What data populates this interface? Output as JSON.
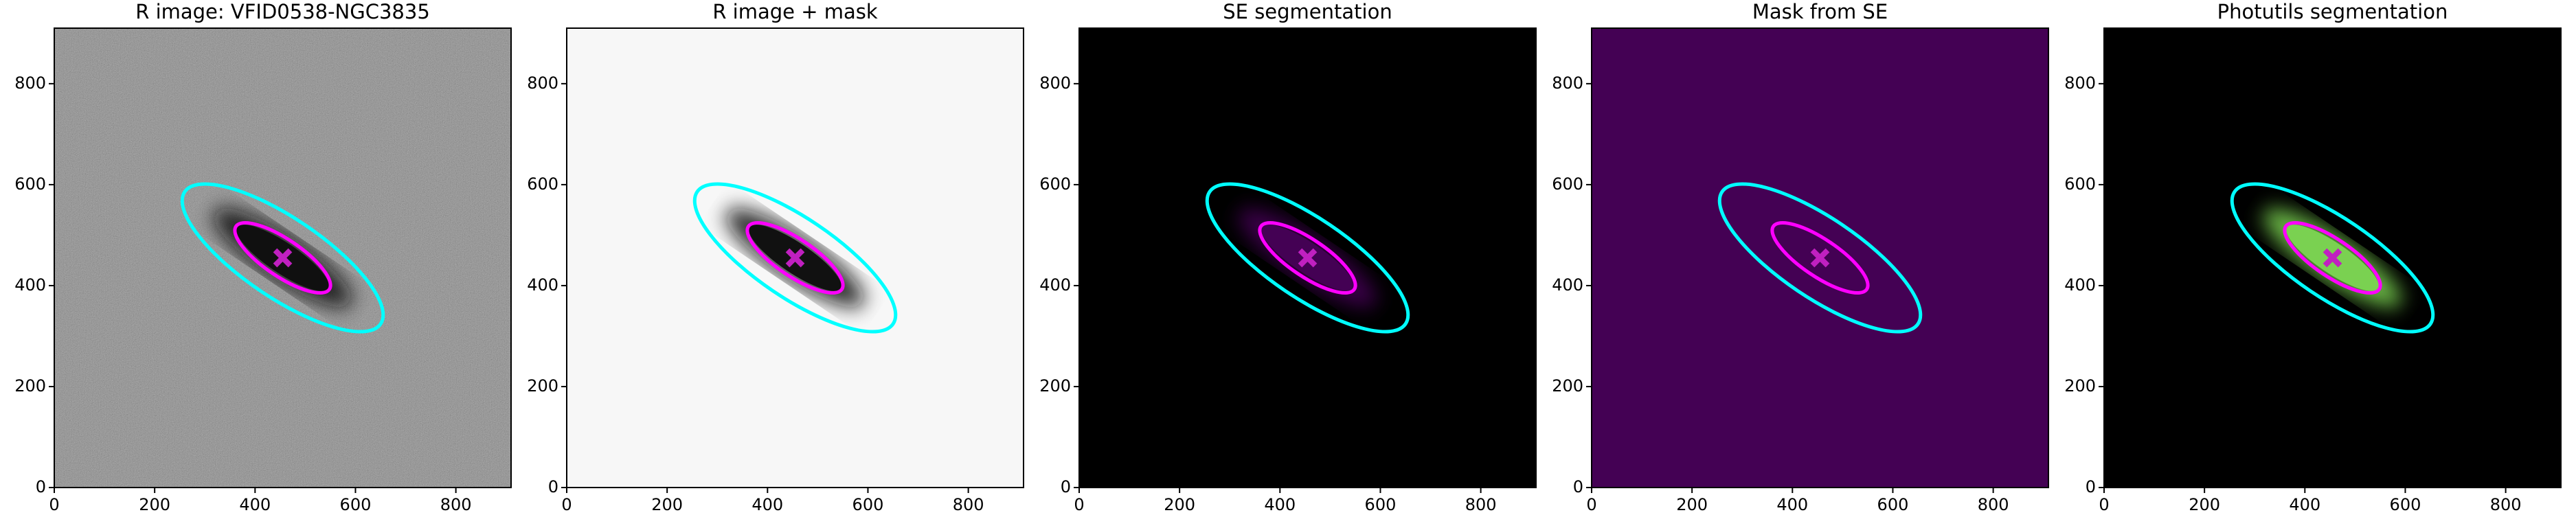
{
  "chart_data": [
    {
      "type": "image",
      "title": "R image: VFID0538-NGC3835",
      "background": "#707070",
      "noise": true,
      "galaxy_color": "#101010",
      "xlim": [
        0,
        910
      ],
      "ylim": [
        0,
        910
      ],
      "xticks": [
        0,
        200,
        400,
        600,
        800
      ],
      "yticks": [
        0,
        200,
        400,
        600,
        800
      ]
    },
    {
      "type": "image",
      "title": "R image + mask",
      "background": "#f7f7f7",
      "noise": false,
      "galaxy_color": "#111111",
      "xlim": [
        0,
        910
      ],
      "ylim": [
        0,
        910
      ],
      "xticks": [
        0,
        200,
        400,
        600,
        800
      ],
      "yticks": [
        0,
        200,
        400,
        600,
        800
      ]
    },
    {
      "type": "image",
      "title": "SE segmentation",
      "background": "#000000",
      "noise": false,
      "galaxy_color": "#440154",
      "xlim": [
        0,
        910
      ],
      "ylim": [
        0,
        910
      ],
      "xticks": [
        0,
        200,
        400,
        600,
        800
      ],
      "yticks": [
        0,
        200,
        400,
        600,
        800
      ]
    },
    {
      "type": "image",
      "title": "Mask from SE",
      "background": "#440154",
      "noise": false,
      "xlim": [
        0,
        910
      ],
      "ylim": [
        0,
        910
      ],
      "xticks": [
        0,
        200,
        400,
        600,
        800
      ],
      "yticks": [
        0,
        200,
        400,
        600,
        800
      ]
    },
    {
      "type": "image",
      "title": "Photutils segmentation",
      "background": "#000000",
      "noise": false,
      "galaxy_color": "#7ad151",
      "xlim": [
        0,
        910
      ],
      "ylim": [
        0,
        910
      ],
      "xticks": [
        0,
        200,
        400,
        600,
        800
      ],
      "yticks": [
        0,
        200,
        400,
        600,
        800
      ]
    }
  ]
}
